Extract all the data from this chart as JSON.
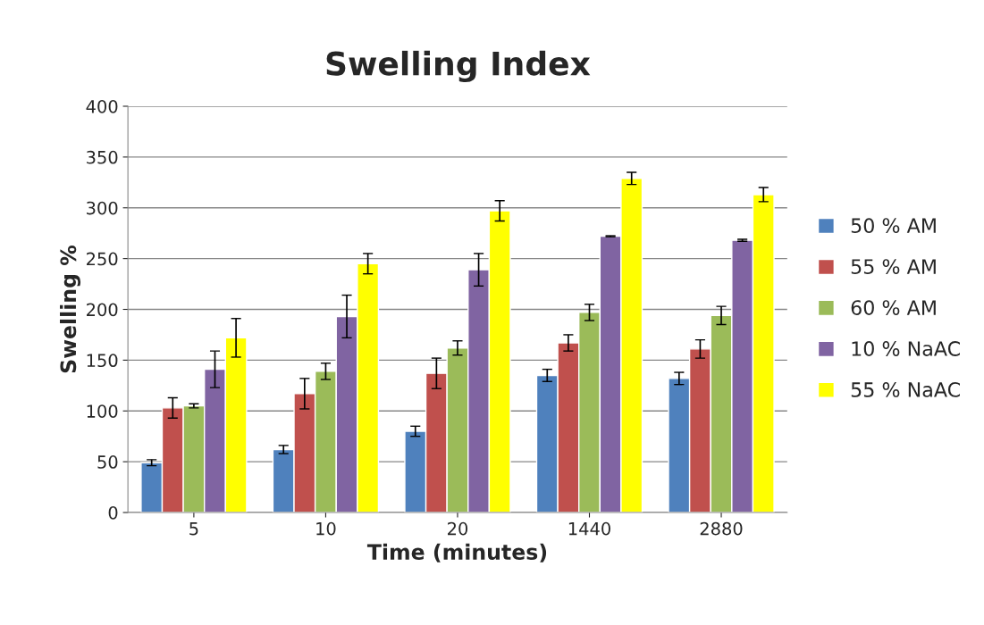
{
  "chart_data": {
    "type": "bar",
    "title": "Swelling Index",
    "xlabel": "Time (minutes)",
    "ylabel": "Swelling %",
    "categories": [
      "5",
      "10",
      "20",
      "1440",
      "2880"
    ],
    "series": [
      {
        "name": "50 % AM",
        "color": "#4f81bd",
        "values": [
          49,
          62,
          80,
          135,
          132
        ],
        "errors": [
          3,
          4,
          5,
          6,
          6
        ]
      },
      {
        "name": "55 % AM",
        "color": "#c0504d",
        "values": [
          103,
          117,
          137,
          167,
          161
        ],
        "errors": [
          10,
          15,
          15,
          8,
          9
        ]
      },
      {
        "name": "60 % AM",
        "color": "#9bbb59",
        "values": [
          105,
          139,
          162,
          197,
          194
        ],
        "errors": [
          2,
          8,
          7,
          8,
          9
        ]
      },
      {
        "name": "10 % NaAC",
        "color": "#8064a2",
        "values": [
          141,
          193,
          239,
          272,
          268
        ],
        "errors": [
          18,
          21,
          16,
          0.5,
          1
        ]
      },
      {
        "name": "55 % NaAC",
        "color": "#ffff00",
        "values": [
          172,
          245,
          297,
          329,
          313
        ],
        "errors": [
          19,
          10,
          10,
          6,
          7
        ]
      }
    ],
    "ylim": [
      0,
      400
    ],
    "yticks": [
      0,
      50,
      100,
      150,
      200,
      250,
      300,
      350,
      400
    ],
    "grid": "y",
    "legend": "right"
  }
}
